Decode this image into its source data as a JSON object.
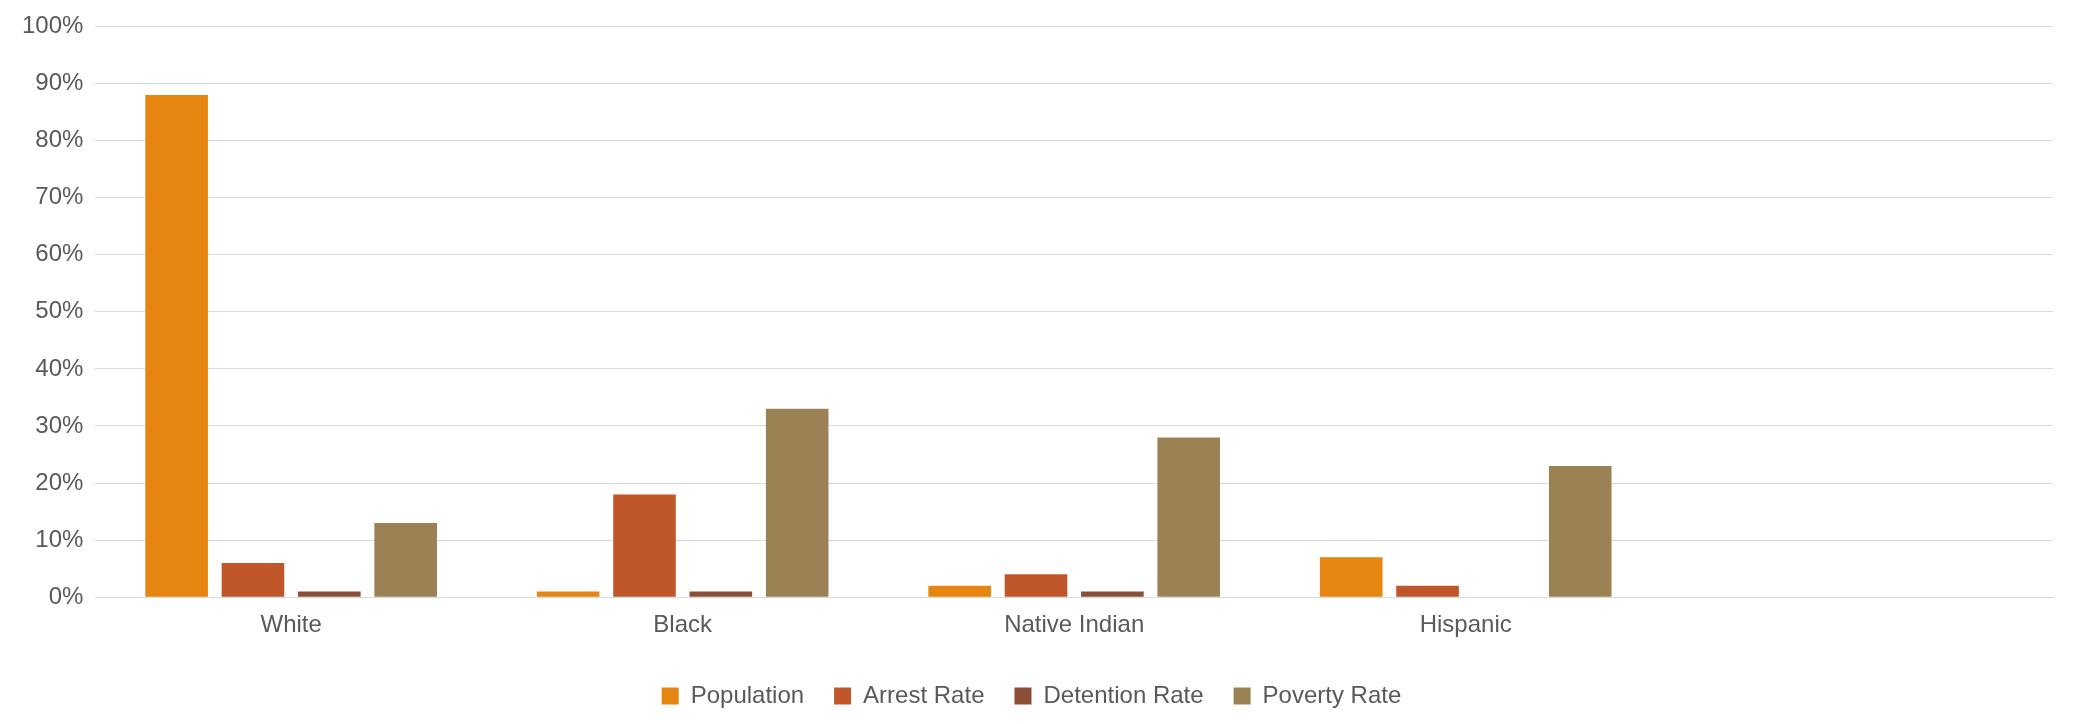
{
  "chart_data": {
    "type": "bar",
    "categories": [
      "White",
      "Black",
      "Native Indian",
      "Hispanic",
      null
    ],
    "series": [
      {
        "name": "Population",
        "color": "#e6850f",
        "values": [
          88,
          1,
          2,
          7,
          null
        ]
      },
      {
        "name": "Arrest Rate",
        "color": "#c0572b",
        "values": [
          6,
          18,
          4,
          2,
          null
        ]
      },
      {
        "name": "Detention Rate",
        "color": "#8b4e37",
        "values": [
          1,
          1,
          1,
          0,
          null
        ]
      },
      {
        "name": "Poverty Rate",
        "color": "#9b8254",
        "values": [
          13,
          33,
          28,
          23,
          null
        ]
      }
    ],
    "ylim": [
      0,
      100
    ],
    "yticks": [
      {
        "value": 0,
        "label": "0%"
      },
      {
        "value": 10,
        "label": "10%"
      },
      {
        "value": 20,
        "label": "20%"
      },
      {
        "value": 30,
        "label": "30%"
      },
      {
        "value": 40,
        "label": "40%"
      },
      {
        "value": 50,
        "label": "50%"
      },
      {
        "value": 60,
        "label": "60%"
      },
      {
        "value": 70,
        "label": "70%"
      },
      {
        "value": 80,
        "label": "80%"
      },
      {
        "value": 90,
        "label": "90%"
      },
      {
        "value": 100,
        "label": "100%"
      }
    ],
    "grid": "y",
    "legend": "bottom"
  }
}
